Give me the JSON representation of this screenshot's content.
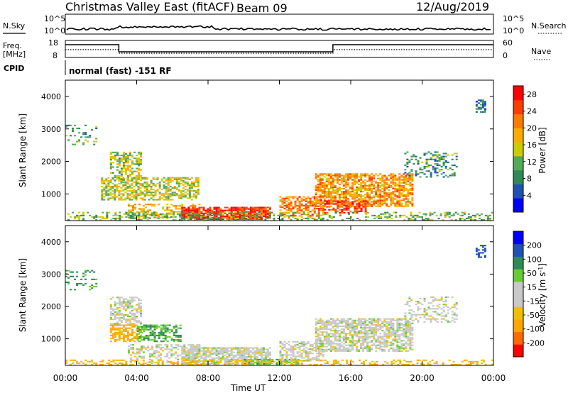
{
  "header": {
    "station": "Christmas Valley East (fitACF)",
    "beam": "Beam 09",
    "date": "12/Aug/2019"
  },
  "top_panels": {
    "nsky_label": "N.Sky",
    "nsearch_label": "N.Search",
    "freq_label_1": "Freq.",
    "freq_label_2": "[MHz]",
    "nave_label": "Nave",
    "cpid_label": "CPID",
    "cpid_text": "normal (fast) -151 RF",
    "noise_ticks_left": [
      "10^5",
      "10^0"
    ],
    "noise_ticks_right": [
      "10^5",
      "10^0"
    ],
    "freq_ticks": [
      "18",
      "8"
    ],
    "nave_ticks": [
      "60",
      "0"
    ]
  },
  "colors": {
    "power": [
      "#0000ff",
      "#2050b4",
      "#2e8b57",
      "#55aa55",
      "#cccc00",
      "#ffaa00",
      "#ff7a00",
      "#ff3c00",
      "#ff0000"
    ],
    "velocity": [
      "#ff0000",
      "#ff6a00",
      "#ffa500",
      "#f0c000",
      "#c8c8c8",
      "#c8c8c8",
      "#66cc33",
      "#2e8b57",
      "#2050b4",
      "#0000ff"
    ]
  },
  "chart_data": [
    {
      "type": "heatmap",
      "name": "power",
      "xlabel": "Time UT",
      "ylabel": "Slant Range [km]",
      "x_ticks": [
        "00:00",
        "04:00",
        "08:00",
        "12:00",
        "16:00",
        "20:00",
        "00:00"
      ],
      "x_range_hours": [
        0,
        24
      ],
      "ylim": [
        180,
        4500
      ],
      "y_ticks": [
        1000,
        2000,
        3000,
        4000
      ],
      "colorbar": {
        "label": "Power [dB]",
        "ticks": [
          4,
          8,
          12,
          16,
          20,
          24,
          28
        ],
        "range": [
          0,
          30
        ]
      },
      "regions": [
        {
          "t": [
            0.0,
            1.8
          ],
          "r": [
            2500,
            3100
          ],
          "level": 10,
          "density": 0.25
        },
        {
          "t": [
            2.5,
            4.3
          ],
          "r": [
            1400,
            2300
          ],
          "level": 14,
          "density": 0.55
        },
        {
          "t": [
            2.0,
            7.5
          ],
          "r": [
            800,
            1500
          ],
          "level": 15,
          "density": 0.6
        },
        {
          "t": [
            3.5,
            7.5
          ],
          "r": [
            250,
            700
          ],
          "level": 18,
          "density": 0.4
        },
        {
          "t": [
            6.5,
            11.5
          ],
          "r": [
            200,
            600
          ],
          "level": 26,
          "density": 0.85
        },
        {
          "t": [
            12.0,
            14.5
          ],
          "r": [
            300,
            900
          ],
          "level": 22,
          "density": 0.6
        },
        {
          "t": [
            14.0,
            19.5
          ],
          "r": [
            600,
            1600
          ],
          "level": 20,
          "density": 0.7
        },
        {
          "t": [
            14.5,
            17.0
          ],
          "r": [
            400,
            800
          ],
          "level": 25,
          "density": 0.5
        },
        {
          "t": [
            19.0,
            22.0
          ],
          "r": [
            1500,
            2300
          ],
          "level": 9,
          "density": 0.3
        },
        {
          "t": [
            23.0,
            23.6
          ],
          "r": [
            3500,
            3900
          ],
          "level": 8,
          "density": 0.5
        },
        {
          "t": [
            0.0,
            24.0
          ],
          "r": [
            180,
            450
          ],
          "level": 12,
          "density": 0.35
        }
      ]
    },
    {
      "type": "heatmap",
      "name": "velocity",
      "xlabel": "Time UT",
      "ylabel": "Slant Range [km]",
      "x_ticks": [
        "00:00",
        "04:00",
        "08:00",
        "12:00",
        "16:00",
        "20:00",
        "00:00"
      ],
      "x_range_hours": [
        0,
        24
      ],
      "ylim": [
        180,
        4500
      ],
      "y_ticks": [
        1000,
        2000,
        3000,
        4000
      ],
      "colorbar": {
        "label": "Velocity [m s^-1]",
        "ticks": [
          -200,
          -100,
          -50,
          -15,
          15,
          50,
          100,
          200
        ],
        "tick_labels": [
          "-200",
          "-100",
          "-50",
          "-15",
          "15",
          "50",
          "100",
          "200"
        ]
      },
      "regions": [
        {
          "t": [
            0.0,
            1.8
          ],
          "r": [
            2500,
            3100
          ],
          "level": 60,
          "density": 0.25
        },
        {
          "t": [
            2.5,
            4.3
          ],
          "r": [
            1400,
            2300
          ],
          "level": 0,
          "density": 0.55
        },
        {
          "t": [
            2.5,
            4.3
          ],
          "r": [
            900,
            1400
          ],
          "level": -60,
          "density": 0.6
        },
        {
          "t": [
            4.0,
            6.5
          ],
          "r": [
            900,
            1400
          ],
          "level": 50,
          "density": 0.6
        },
        {
          "t": [
            3.5,
            7.5
          ],
          "r": [
            250,
            800
          ],
          "level": 0,
          "density": 0.45
        },
        {
          "t": [
            6.5,
            11.5
          ],
          "r": [
            200,
            700
          ],
          "level": 0,
          "density": 0.8
        },
        {
          "t": [
            10.0,
            13.0
          ],
          "r": [
            200,
            350
          ],
          "level": 40,
          "density": 0.6
        },
        {
          "t": [
            12.0,
            14.5
          ],
          "r": [
            300,
            900
          ],
          "level": 0,
          "density": 0.6
        },
        {
          "t": [
            14.0,
            19.5
          ],
          "r": [
            600,
            1600
          ],
          "level": 0,
          "density": 0.7
        },
        {
          "t": [
            19.0,
            22.0
          ],
          "r": [
            1500,
            2300
          ],
          "level": 0,
          "density": 0.3
        },
        {
          "t": [
            23.0,
            23.6
          ],
          "r": [
            3500,
            3900
          ],
          "level": 150,
          "density": 0.5
        },
        {
          "t": [
            0.0,
            24.0
          ],
          "r": [
            180,
            350
          ],
          "level": -40,
          "density": 0.35
        }
      ]
    }
  ]
}
